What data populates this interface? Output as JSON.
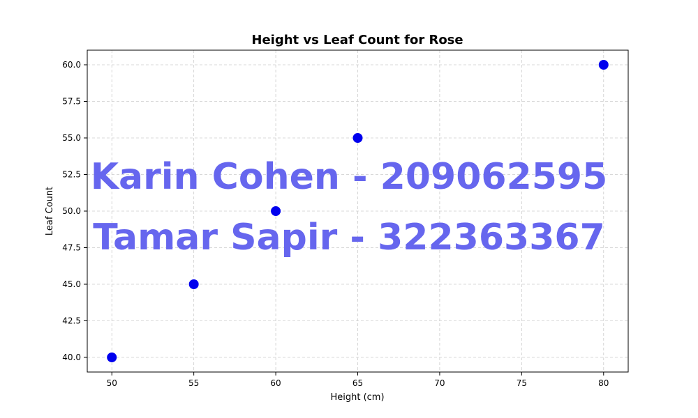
{
  "chart_data": {
    "type": "scatter",
    "title": "Height vs Leaf Count for Rose",
    "xlabel": "Height (cm)",
    "ylabel": "Leaf Count",
    "x": [
      50,
      55,
      60,
      65,
      80
    ],
    "y": [
      40,
      45,
      50,
      55,
      60
    ],
    "xlim": [
      48.5,
      81.5
    ],
    "ylim": [
      39,
      61
    ],
    "xticks": [
      50,
      55,
      60,
      65,
      70,
      75,
      80
    ],
    "xtick_labels": [
      "50",
      "55",
      "60",
      "65",
      "70",
      "75",
      "80"
    ],
    "yticks": [
      40.0,
      42.5,
      45.0,
      47.5,
      50.0,
      52.5,
      55.0,
      57.5,
      60.0
    ],
    "ytick_labels": [
      "40.0",
      "42.5",
      "45.0",
      "47.5",
      "50.0",
      "52.5",
      "55.0",
      "57.5",
      "60.0"
    ],
    "grid": true,
    "marker_color": "#0000ee"
  },
  "watermark": {
    "lines": [
      "Karin Cohen - 209062595",
      "Tamar Sapir - 322363367"
    ],
    "color": "#6666ee"
  }
}
